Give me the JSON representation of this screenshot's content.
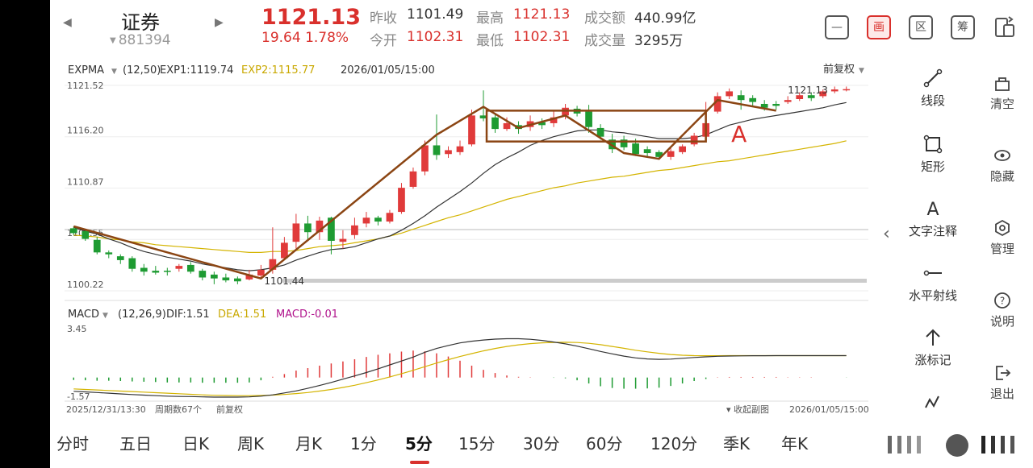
{
  "header": {
    "stock_name": "证券",
    "stock_code": "881394",
    "price": "1121.13",
    "change": "19.64  1.78%",
    "quotes": [
      {
        "label": "昨收",
        "value": "1101.49",
        "color": "dark"
      },
      {
        "label": "最高",
        "value": "1121.13",
        "color": "red"
      },
      {
        "label": "成交额",
        "value": "440.99亿",
        "color": "dark"
      },
      {
        "label": "今开",
        "value": "1102.31",
        "color": "red"
      },
      {
        "label": "最低",
        "value": "1102.31",
        "color": "red"
      },
      {
        "label": "成交量",
        "value": "3295万",
        "color": "dark"
      }
    ],
    "buttons": [
      "—",
      "画",
      "区",
      "筹",
      ""
    ]
  },
  "chart_data": [
    {
      "type": "candlestick",
      "indicator": "EXPMA",
      "params": "(12,50)",
      "exp1_label": "EXP1:1119.74",
      "exp2_label": "EXP2:1115.77",
      "timestamp": "2026/01/05/15:00",
      "adjust": "前复权",
      "y_ticks": [
        "1121.52",
        "1116.20",
        "1110.87",
        "1105.55",
        "1100.22"
      ],
      "ylim": [
        1100.22,
        1121.52
      ],
      "low_label": "1101.44",
      "high_label": "1121.13",
      "annotation": "A",
      "candles": [
        [
          1106.7,
          1106.2,
          1106.9,
          1106.0
        ],
        [
          1106.4,
          1105.6,
          1106.6,
          1105.4
        ],
        [
          1105.5,
          1104.2,
          1105.8,
          1104.0
        ],
        [
          1104.2,
          1104.0,
          1104.4,
          1103.6
        ],
        [
          1103.8,
          1103.4,
          1104.0,
          1103.0
        ],
        [
          1103.6,
          1102.5,
          1103.8,
          1102.2
        ],
        [
          1102.6,
          1102.2,
          1103.0,
          1101.8
        ],
        [
          1102.3,
          1102.1,
          1102.8,
          1101.9
        ],
        [
          1102.3,
          1102.2,
          1102.6,
          1101.8
        ],
        [
          1102.5,
          1102.8,
          1103.0,
          1102.2
        ],
        [
          1102.9,
          1102.2,
          1103.2,
          1102.0
        ],
        [
          1102.3,
          1101.6,
          1102.5,
          1101.3
        ],
        [
          1101.9,
          1101.5,
          1102.2,
          1100.9
        ],
        [
          1101.6,
          1101.3,
          1102.0,
          1101.1
        ],
        [
          1101.5,
          1101.2,
          1101.7,
          1100.9
        ],
        [
          1101.4,
          1101.9,
          1102.4,
          1101.3
        ],
        [
          1101.8,
          1102.4,
          1102.9,
          1101.5
        ],
        [
          1102.4,
          1103.5,
          1106.8,
          1102.0
        ],
        [
          1103.6,
          1105.2,
          1105.8,
          1103.4
        ],
        [
          1105.3,
          1107.2,
          1108.2,
          1104.6
        ],
        [
          1107.2,
          1106.3,
          1108.0,
          1105.4
        ],
        [
          1106.3,
          1107.5,
          1107.9,
          1105.5
        ],
        [
          1107.8,
          1105.4,
          1107.9,
          1104.0
        ],
        [
          1105.3,
          1105.6,
          1106.5,
          1104.6
        ],
        [
          1106.0,
          1107.0,
          1107.8,
          1105.6
        ],
        [
          1107.2,
          1107.8,
          1108.4,
          1106.8
        ],
        [
          1107.8,
          1107.4,
          1108.0,
          1107.0
        ],
        [
          1107.4,
          1108.3,
          1108.6,
          1107.2
        ],
        [
          1108.4,
          1110.9,
          1111.4,
          1108.2
        ],
        [
          1111.0,
          1112.6,
          1113.0,
          1110.8
        ],
        [
          1112.6,
          1115.3,
          1115.8,
          1112.2
        ],
        [
          1115.3,
          1114.3,
          1118.5,
          1113.8
        ],
        [
          1114.4,
          1114.8,
          1115.2,
          1114.0
        ],
        [
          1114.6,
          1115.2,
          1115.8,
          1114.3
        ],
        [
          1115.4,
          1118.4,
          1119.0,
          1115.2
        ],
        [
          1118.4,
          1118.1,
          1121.0,
          1117.8
        ],
        [
          1118.2,
          1117.0,
          1118.6,
          1116.6
        ],
        [
          1117.0,
          1117.6,
          1118.2,
          1116.8
        ],
        [
          1117.4,
          1117.0,
          1117.8,
          1116.5
        ],
        [
          1117.2,
          1117.8,
          1118.4,
          1116.8
        ],
        [
          1117.7,
          1117.4,
          1118.1,
          1117.0
        ],
        [
          1117.6,
          1118.2,
          1118.9,
          1117.2
        ],
        [
          1118.4,
          1119.2,
          1119.6,
          1118.0
        ],
        [
          1119.1,
          1118.6,
          1119.4,
          1118.3
        ],
        [
          1118.8,
          1117.2,
          1119.5,
          1116.6
        ],
        [
          1117.1,
          1116.2,
          1117.5,
          1115.9
        ],
        [
          1115.9,
          1114.9,
          1116.5,
          1114.5
        ],
        [
          1115.9,
          1115.1,
          1116.3,
          1114.8
        ],
        [
          1115.5,
          1114.4,
          1116.0,
          1114.2
        ],
        [
          1114.9,
          1114.5,
          1115.2,
          1114.1
        ],
        [
          1114.6,
          1114.1,
          1114.8,
          1113.9
        ],
        [
          1114.1,
          1114.7,
          1115.0,
          1113.8
        ],
        [
          1114.6,
          1115.2,
          1115.4,
          1114.4
        ],
        [
          1115.4,
          1116.3,
          1116.6,
          1115.2
        ],
        [
          1116.2,
          1117.6,
          1119.8,
          1116.0
        ],
        [
          1118.8,
          1120.4,
          1120.8,
          1118.6
        ],
        [
          1120.4,
          1120.9,
          1121.2,
          1120.1
        ],
        [
          1120.5,
          1120.0,
          1121.0,
          1119.0
        ],
        [
          1120.2,
          1119.8,
          1120.5,
          1119.4
        ],
        [
          1119.6,
          1119.2,
          1120.0,
          1118.9
        ],
        [
          1119.6,
          1119.4,
          1119.9,
          1119.0
        ],
        [
          1119.8,
          1120.0,
          1120.4,
          1119.6
        ],
        [
          1120.1,
          1120.5,
          1120.8,
          1119.9
        ],
        [
          1120.5,
          1120.2,
          1120.8,
          1119.9
        ],
        [
          1120.4,
          1120.9,
          1121.1,
          1120.2
        ],
        [
          1120.9,
          1121.1,
          1121.4,
          1120.7
        ],
        [
          1121.1,
          1121.13,
          1121.4,
          1120.9
        ]
      ],
      "exp1": [
        1106.8,
        1106.4,
        1106.1,
        1105.6,
        1105.2,
        1104.7,
        1104.3,
        1104.0,
        1103.7,
        1103.5,
        1103.3,
        1103.0,
        1102.8,
        1102.6,
        1102.4,
        1102.3,
        1102.4,
        1102.6,
        1102.9,
        1103.4,
        1103.8,
        1104.2,
        1104.5,
        1104.6,
        1104.8,
        1105.2,
        1105.6,
        1105.9,
        1106.5,
        1107.2,
        1108.0,
        1108.9,
        1109.7,
        1110.5,
        1111.4,
        1112.4,
        1113.3,
        1114.0,
        1114.6,
        1115.3,
        1115.8,
        1116.2,
        1116.5,
        1116.8,
        1116.9,
        1116.9,
        1116.7,
        1116.6,
        1116.4,
        1116.2,
        1116.0,
        1116.0,
        1116.0,
        1116.1,
        1116.4,
        1116.9,
        1117.4,
        1117.7,
        1118.0,
        1118.2,
        1118.4,
        1118.6,
        1118.8,
        1119.0,
        1119.2,
        1119.5,
        1119.74
      ],
      "exp2": [
        1106.0,
        1105.9,
        1105.8,
        1105.6,
        1105.5,
        1105.3,
        1105.2,
        1105.0,
        1104.9,
        1104.8,
        1104.7,
        1104.6,
        1104.5,
        1104.4,
        1104.3,
        1104.2,
        1104.2,
        1104.3,
        1104.3,
        1104.4,
        1104.6,
        1104.8,
        1104.9,
        1105.0,
        1105.2,
        1105.4,
        1105.6,
        1105.9,
        1106.2,
        1106.6,
        1107.0,
        1107.4,
        1107.8,
        1108.1,
        1108.5,
        1108.9,
        1109.3,
        1109.7,
        1110.0,
        1110.3,
        1110.6,
        1110.9,
        1111.1,
        1111.4,
        1111.6,
        1111.8,
        1112.0,
        1112.1,
        1112.3,
        1112.5,
        1112.7,
        1112.8,
        1113.0,
        1113.2,
        1113.4,
        1113.6,
        1113.7,
        1113.9,
        1114.1,
        1114.3,
        1114.5,
        1114.7,
        1114.9,
        1115.1,
        1115.3,
        1115.5,
        1115.77
      ]
    },
    {
      "type": "macd",
      "indicator": "MACD",
      "params": "(12,26,9)",
      "dif_label": "DIF:1.51",
      "dea_label": "DEA:1.51",
      "macd_label": "MACD:-0.01",
      "y_ticks": [
        "3.45",
        "-1.57"
      ],
      "ylim": [
        -1.57,
        3.45
      ],
      "hist": [
        -0.17,
        -0.19,
        -0.22,
        -0.22,
        -0.24,
        -0.27,
        -0.29,
        -0.31,
        -0.34,
        -0.34,
        -0.34,
        -0.36,
        -0.36,
        -0.36,
        -0.36,
        -0.34,
        -0.19,
        0.05,
        0.24,
        0.48,
        0.65,
        0.82,
        0.97,
        1.11,
        1.26,
        1.42,
        1.57,
        1.67,
        1.79,
        1.86,
        1.81,
        1.67,
        1.45,
        1.16,
        0.82,
        0.53,
        0.31,
        0.14,
        0.05,
        0.02,
        0.0,
        -0.02,
        -0.05,
        -0.19,
        -0.41,
        -0.6,
        -0.72,
        -0.77,
        -0.77,
        -0.75,
        -0.7,
        -0.58,
        -0.41,
        -0.24,
        -0.1,
        0.02,
        0.04,
        0.04,
        0.04,
        0.04,
        0.04,
        0.02,
        0.02,
        0.02,
        0.0,
        0.0,
        -0.01
      ],
      "dif": [
        -1.14,
        -1.18,
        -1.23,
        -1.28,
        -1.33,
        -1.38,
        -1.42,
        -1.46,
        -1.5,
        -1.52,
        -1.53,
        -1.55,
        -1.57,
        -1.57,
        -1.57,
        -1.55,
        -1.5,
        -1.4,
        -1.26,
        -1.11,
        -0.92,
        -0.71,
        -0.48,
        -0.24,
        0.0,
        0.25,
        0.53,
        0.82,
        1.11,
        1.4,
        1.76,
        2.04,
        2.26,
        2.45,
        2.58,
        2.67,
        2.73,
        2.76,
        2.76,
        2.72,
        2.64,
        2.52,
        2.38,
        2.21,
        2.02,
        1.82,
        1.64,
        1.47,
        1.34,
        1.26,
        1.23,
        1.25,
        1.31,
        1.37,
        1.42,
        1.46,
        1.48,
        1.49,
        1.5,
        1.5,
        1.51,
        1.51,
        1.51,
        1.51,
        1.51,
        1.51,
        1.51
      ],
      "dea": [
        -0.96,
        -1.0,
        -1.04,
        -1.08,
        -1.12,
        -1.16,
        -1.2,
        -1.24,
        -1.28,
        -1.32,
        -1.36,
        -1.4,
        -1.43,
        -1.45,
        -1.46,
        -1.46,
        -1.45,
        -1.42,
        -1.37,
        -1.31,
        -1.23,
        -1.12,
        -1.0,
        -0.85,
        -0.69,
        -0.5,
        -0.3,
        -0.07,
        0.17,
        0.42,
        0.69,
        0.96,
        1.21,
        1.44,
        1.66,
        1.86,
        2.04,
        2.19,
        2.31,
        2.4,
        2.46,
        2.49,
        2.5,
        2.48,
        2.42,
        2.32,
        2.19,
        2.05,
        1.91,
        1.79,
        1.68,
        1.59,
        1.54,
        1.51,
        1.5,
        1.5,
        1.51,
        1.51,
        1.51,
        1.51,
        1.51,
        1.51,
        1.51,
        1.51,
        1.51,
        1.51,
        1.51
      ]
    }
  ],
  "chart_footer": {
    "start_time": "2025/12/31/13:30",
    "period_count": "周期数67个",
    "adjust": "前复权",
    "collapse": "收起副图",
    "end_time": "2026/01/05/15:00"
  },
  "drawing_tools": [
    {
      "label": "线段",
      "icon": "line-segment-icon"
    },
    {
      "label": "矩形",
      "icon": "rectangle-icon"
    },
    {
      "label": "文字注释",
      "icon": "text-annotation-icon",
      "glyph": "A"
    },
    {
      "label": "水平射线",
      "icon": "horizontal-ray-icon"
    },
    {
      "label": "涨标记",
      "icon": "rise-mark-icon"
    }
  ],
  "side_actions": [
    {
      "label": "清空",
      "icon": "trash-icon"
    },
    {
      "label": "隐藏",
      "icon": "eye-icon"
    },
    {
      "label": "管理",
      "icon": "settings-icon"
    },
    {
      "label": "说明",
      "icon": "help-icon"
    },
    {
      "label": "退出",
      "icon": "exit-icon"
    }
  ],
  "period_tabs": [
    "分时",
    "五日",
    "日K",
    "周K",
    "月K",
    "1分",
    "5分",
    "15分",
    "30分",
    "60分",
    "120分",
    "季K",
    "年K"
  ],
  "active_tab": "5分",
  "colors": {
    "up": "#e03a3a",
    "down": "#1e9b32",
    "exp1": "#333333",
    "exp2": "#d4b400",
    "drawing": "#8b4513",
    "accent": "#d9302c"
  }
}
